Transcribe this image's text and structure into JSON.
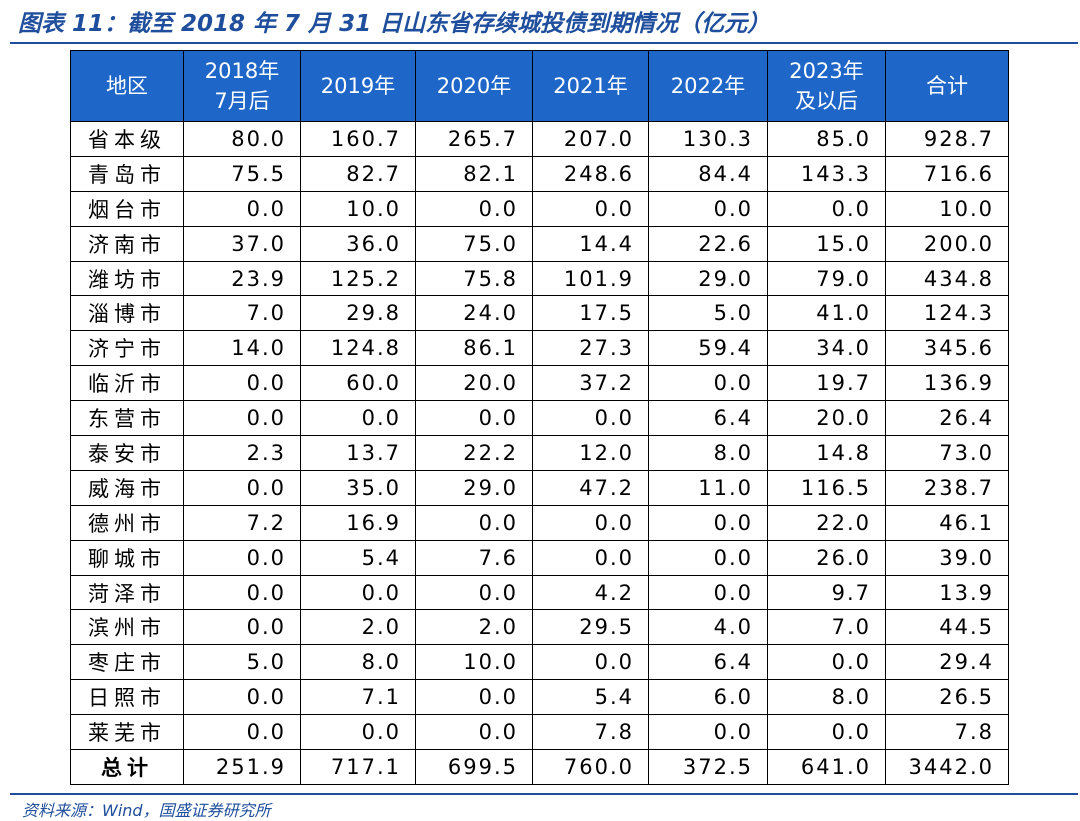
{
  "title": "图表 11：截至 2018 年 7 月 31 日山东省存续城投债到期情况（亿元）",
  "table": {
    "header": [
      "地区",
      "2018年7月后",
      "2019年",
      "2020年",
      "2021年",
      "2022年",
      "2023年及以后",
      "合计"
    ],
    "rows": [
      [
        "省本级",
        "80.0",
        "160.7",
        "265.7",
        "207.0",
        "130.3",
        "85.0",
        "928.7"
      ],
      [
        "青岛市",
        "75.5",
        "82.7",
        "82.1",
        "248.6",
        "84.4",
        "143.3",
        "716.6"
      ],
      [
        "烟台市",
        "0.0",
        "10.0",
        "0.0",
        "0.0",
        "0.0",
        "0.0",
        "10.0"
      ],
      [
        "济南市",
        "37.0",
        "36.0",
        "75.0",
        "14.4",
        "22.6",
        "15.0",
        "200.0"
      ],
      [
        "潍坊市",
        "23.9",
        "125.2",
        "75.8",
        "101.9",
        "29.0",
        "79.0",
        "434.8"
      ],
      [
        "淄博市",
        "7.0",
        "29.8",
        "24.0",
        "17.5",
        "5.0",
        "41.0",
        "124.3"
      ],
      [
        "济宁市",
        "14.0",
        "124.8",
        "86.1",
        "27.3",
        "59.4",
        "34.0",
        "345.6"
      ],
      [
        "临沂市",
        "0.0",
        "60.0",
        "20.0",
        "37.2",
        "0.0",
        "19.7",
        "136.9"
      ],
      [
        "东营市",
        "0.0",
        "0.0",
        "0.0",
        "0.0",
        "6.4",
        "20.0",
        "26.4"
      ],
      [
        "泰安市",
        "2.3",
        "13.7",
        "22.2",
        "12.0",
        "8.0",
        "14.8",
        "73.0"
      ],
      [
        "威海市",
        "0.0",
        "35.0",
        "29.0",
        "47.2",
        "11.0",
        "116.5",
        "238.7"
      ],
      [
        "德州市",
        "7.2",
        "16.9",
        "0.0",
        "0.0",
        "0.0",
        "22.0",
        "46.1"
      ],
      [
        "聊城市",
        "0.0",
        "5.4",
        "7.6",
        "0.0",
        "0.0",
        "26.0",
        "39.0"
      ],
      [
        "菏泽市",
        "0.0",
        "0.0",
        "0.0",
        "4.2",
        "0.0",
        "9.7",
        "13.9"
      ],
      [
        "滨州市",
        "0.0",
        "2.0",
        "2.0",
        "29.5",
        "4.0",
        "7.0",
        "44.5"
      ],
      [
        "枣庄市",
        "5.0",
        "8.0",
        "10.0",
        "0.0",
        "6.4",
        "0.0",
        "29.4"
      ],
      [
        "日照市",
        "0.0",
        "7.1",
        "0.0",
        "5.4",
        "6.0",
        "8.0",
        "26.5"
      ],
      [
        "莱芜市",
        "0.0",
        "0.0",
        "0.0",
        "7.8",
        "0.0",
        "0.0",
        "7.8"
      ],
      [
        "总计",
        "251.9",
        "717.1",
        "699.5",
        "760.0",
        "372.5",
        "641.0",
        "3442.0"
      ]
    ]
  },
  "source": "资料来源：Wind，国盛证券研究所"
}
